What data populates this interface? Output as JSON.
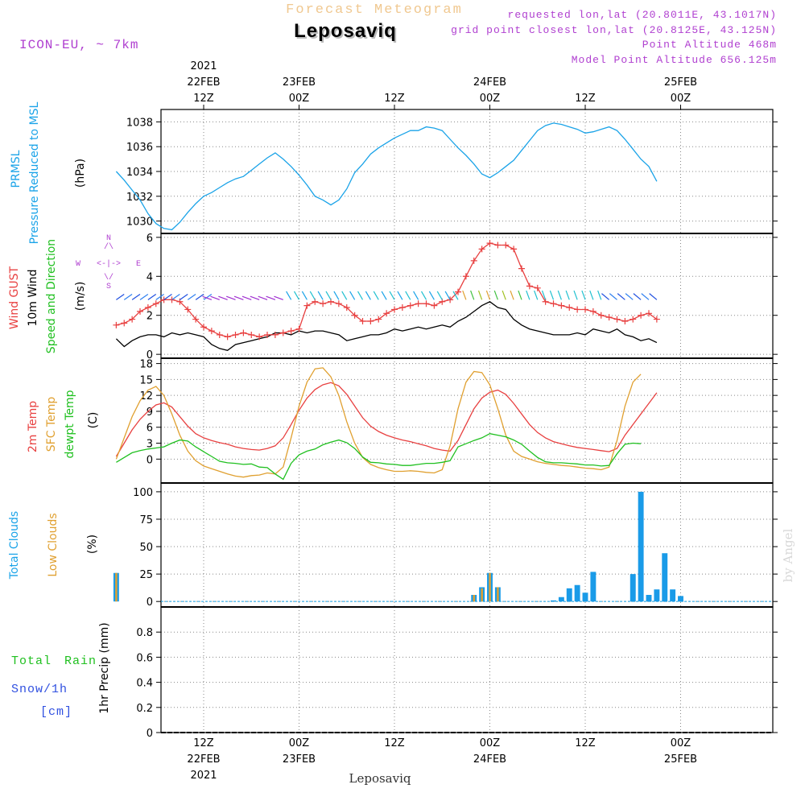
{
  "header": {
    "top_title": "Forecast Meteogram",
    "location": "Leposaviq",
    "model": "ICON-EU, ~ 7km",
    "requested": "requested lon,lat (20.8011E, 43.1017N)",
    "grid_point": "grid point closest lon,lat (20.8125E, 43.125N)",
    "point_alt": "Point Altitude 468m",
    "model_alt": "Model Point Altitude 656.125m",
    "footer_location": "Leposaviq",
    "credit": "by Angel"
  },
  "time_axis": {
    "top_labels": [
      [
        "2021",
        "22FEB",
        "12Z"
      ],
      [
        "",
        "23FEB",
        "00Z"
      ],
      [
        "",
        "",
        "12Z"
      ],
      [
        "",
        "24FEB",
        "00Z"
      ],
      [
        "",
        "",
        "12Z"
      ],
      [
        "",
        "25FEB",
        "00Z"
      ]
    ],
    "bottom_labels": [
      [
        "12Z",
        "22FEB",
        "2021"
      ],
      [
        "00Z",
        "23FEB",
        ""
      ],
      [
        "12Z",
        "",
        ""
      ],
      [
        "00Z",
        "24FEB",
        ""
      ],
      [
        "12Z",
        "",
        ""
      ],
      [
        "00Z",
        "25FEB",
        ""
      ]
    ]
  },
  "panel_labels": {
    "pressure": {
      "line1": "PRMSL",
      "line2": "Pressure Reduced to MSL",
      "unit": "(hPa)"
    },
    "wind": {
      "gust": "Wind GUST",
      "wind10": "10m Wind",
      "dir": "Speed and Direction",
      "unit": "(m/s)",
      "compass_n": "N",
      "compass_s": "S",
      "compass_w": "W",
      "compass_e": "E",
      "compass_h": "<-|->",
      "compass_vu": "/\\",
      "compass_vd": "\\/"
    },
    "temp": {
      "t2m": "2m Temp",
      "sfc": "SFC Temp",
      "dew": "dewpt Temp",
      "unit": "(C)"
    },
    "clouds": {
      "total": "Total Clouds",
      "low": "Low Clouds",
      "unit": "(%)"
    },
    "precip": {
      "rain1": "Total",
      "rain2": "Rain",
      "snow": "Snow/1h",
      "cm": "[cm]",
      "axis": "1hr Precip (mm)"
    }
  },
  "colors": {
    "prmsl": "#1aa3e8",
    "gust": "#e84040",
    "wind10": "#000000",
    "t2m": "#e84040",
    "sfc": "#e0a030",
    "dew": "#20c020",
    "total_clouds": "#1a9be8",
    "low_clouds": "#e0a030",
    "rain": "#20c020",
    "snow": "#3050e0",
    "label_purple": "#b040d0",
    "title_orange": "#f0c890"
  },
  "chart_data": [
    {
      "type": "line",
      "panel": "pressure",
      "ylabel": "(hPa)",
      "ylim": [
        1029,
        1039
      ],
      "yticks": [
        1030,
        1032,
        1034,
        1036,
        1038
      ],
      "x_start": "2021-02-22T01Z",
      "x_step_hours": 1,
      "series": [
        {
          "name": "PRMSL",
          "values": [
            1034.0,
            1033.3,
            1032.5,
            1031.7,
            1030.6,
            1029.8,
            1029.4,
            1029.3,
            1029.9,
            1030.7,
            1031.4,
            1032.0,
            1032.3,
            1032.7,
            1033.1,
            1033.4,
            1033.6,
            1034.1,
            1034.6,
            1035.1,
            1035.5,
            1035.0,
            1034.4,
            1033.7,
            1032.9,
            1032.0,
            1031.7,
            1031.3,
            1031.7,
            1032.6,
            1033.9,
            1034.6,
            1035.4,
            1035.9,
            1036.3,
            1036.7,
            1037.0,
            1037.3,
            1037.3,
            1037.6,
            1037.5,
            1037.3,
            1036.6,
            1035.9,
            1035.3,
            1034.6,
            1033.8,
            1033.5,
            1033.9,
            1034.4,
            1034.9,
            1035.7,
            1036.5,
            1037.3,
            1037.7,
            1037.9,
            1037.8,
            1037.6,
            1037.4,
            1037.1,
            1037.2,
            1037.4,
            1037.6,
            1037.3,
            1036.6,
            1035.8,
            1035.0,
            1034.4,
            1033.2
          ]
        }
      ]
    },
    {
      "type": "line",
      "panel": "wind",
      "ylabel": "(m/s)",
      "ylim": [
        -0.2,
        6.2
      ],
      "yticks": [
        0,
        2,
        4,
        6
      ],
      "x_start": "2021-02-22T01Z",
      "x_step_hours": 1,
      "series": [
        {
          "name": "Wind GUST",
          "values": [
            1.5,
            1.6,
            1.8,
            2.2,
            2.4,
            2.6,
            2.8,
            2.8,
            2.7,
            2.3,
            1.8,
            1.4,
            1.2,
            1.0,
            0.9,
            1.0,
            1.1,
            1.0,
            0.9,
            1.0,
            1.0,
            1.1,
            1.2,
            1.3,
            2.5,
            2.7,
            2.6,
            2.7,
            2.6,
            2.4,
            2.0,
            1.7,
            1.7,
            1.8,
            2.1,
            2.3,
            2.4,
            2.5,
            2.6,
            2.6,
            2.5,
            2.7,
            2.8,
            3.2,
            4.0,
            4.8,
            5.4,
            5.7,
            5.6,
            5.6,
            5.4,
            4.4,
            3.5,
            3.4,
            2.7,
            2.6,
            2.5,
            2.4,
            2.3,
            2.3,
            2.2,
            2.0,
            1.9,
            1.8,
            1.7,
            1.8,
            2.0,
            2.1,
            1.8
          ]
        },
        {
          "name": "10m Wind",
          "values": [
            0.8,
            0.4,
            0.7,
            0.9,
            1.0,
            1.0,
            0.9,
            1.1,
            1.0,
            1.1,
            1.0,
            0.9,
            0.5,
            0.3,
            0.2,
            0.5,
            0.6,
            0.7,
            0.8,
            0.9,
            1.1,
            1.1,
            1.0,
            1.2,
            1.1,
            1.2,
            1.2,
            1.1,
            1.0,
            0.7,
            0.8,
            0.9,
            1.0,
            1.0,
            1.1,
            1.3,
            1.2,
            1.3,
            1.4,
            1.3,
            1.4,
            1.5,
            1.4,
            1.7,
            1.9,
            2.2,
            2.5,
            2.7,
            2.4,
            2.3,
            1.8,
            1.5,
            1.3,
            1.2,
            1.1,
            1.0,
            1.0,
            1.0,
            1.1,
            1.0,
            1.3,
            1.2,
            1.1,
            1.3,
            1.0,
            0.9,
            0.7,
            0.8,
            0.6
          ]
        }
      ]
    },
    {
      "type": "line",
      "panel": "temperature",
      "ylabel": "(C)",
      "ylim": [
        -4.5,
        19
      ],
      "yticks": [
        0,
        3,
        6,
        9,
        12,
        15,
        18
      ],
      "x_start": "2021-02-22T01Z",
      "x_step_hours": 1,
      "series": [
        {
          "name": "2m Temp",
          "values": [
            0.5,
            3.0,
            5.5,
            7.5,
            9.0,
            10.2,
            10.6,
            9.8,
            8.0,
            6.2,
            4.8,
            4.0,
            3.5,
            3.1,
            2.8,
            2.3,
            2.0,
            1.8,
            1.7,
            2.0,
            2.5,
            4.0,
            6.5,
            9.2,
            11.5,
            13.1,
            14.0,
            14.4,
            13.8,
            12.2,
            10.0,
            7.8,
            6.2,
            5.2,
            4.5,
            4.0,
            3.6,
            3.3,
            2.9,
            2.5,
            2.0,
            1.7,
            1.5,
            3.5,
            6.5,
            9.5,
            11.5,
            12.6,
            13.0,
            12.2,
            10.5,
            8.5,
            6.5,
            5.0,
            4.0,
            3.3,
            2.9,
            2.5,
            2.2,
            2.0,
            1.8,
            1.6,
            1.4,
            2.0,
            4.5,
            6.5,
            8.5,
            10.5,
            12.5
          ]
        },
        {
          "name": "SFC Temp",
          "values": [
            0.0,
            4.0,
            8.0,
            11.0,
            13.0,
            13.7,
            12.0,
            8.5,
            4.5,
            1.5,
            -0.3,
            -1.3,
            -1.8,
            -2.3,
            -2.8,
            -3.2,
            -3.4,
            -3.1,
            -3.0,
            -2.6,
            -2.8,
            -1.5,
            4.0,
            10.0,
            14.5,
            17.0,
            17.2,
            15.5,
            12.0,
            7.0,
            3.0,
            0.3,
            -1.0,
            -1.6,
            -2.0,
            -2.3,
            -2.3,
            -2.2,
            -2.3,
            -2.5,
            -2.6,
            -2.0,
            2.5,
            9.5,
            14.5,
            16.5,
            16.3,
            14.0,
            9.5,
            4.5,
            1.5,
            0.5,
            0.0,
            -0.5,
            -0.8,
            -1.0,
            -1.2,
            -1.3,
            -1.5,
            -1.7,
            -1.8,
            -2.0,
            -1.5,
            3.5,
            10.0,
            14.5,
            16.0
          ]
        },
        {
          "name": "dewpt Temp",
          "values": [
            -0.6,
            0.3,
            1.2,
            1.6,
            1.9,
            2.1,
            2.3,
            3.0,
            3.6,
            3.4,
            2.3,
            1.4,
            0.5,
            -0.4,
            -0.7,
            -0.8,
            -1.0,
            -0.9,
            -1.5,
            -1.6,
            -2.8,
            -3.8,
            -0.8,
            0.8,
            1.5,
            1.9,
            2.7,
            3.2,
            3.6,
            3.1,
            2.0,
            0.4,
            -0.6,
            -0.7,
            -0.9,
            -1.0,
            -1.2,
            -1.2,
            -1.0,
            -0.8,
            -0.8,
            -0.6,
            -0.3,
            2.3,
            2.9,
            3.5,
            4.0,
            4.8,
            4.5,
            4.2,
            3.6,
            2.8,
            1.5,
            0.3,
            -0.5,
            -0.7,
            -0.7,
            -0.8,
            -0.9,
            -1.1,
            -1.1,
            -1.3,
            -1.2,
            1.0,
            2.8,
            3.0,
            2.9
          ]
        }
      ]
    },
    {
      "type": "bar",
      "panel": "clouds",
      "ylabel": "(%)",
      "ylim": [
        -5,
        108
      ],
      "yticks": [
        0,
        25,
        50,
        75,
        100
      ],
      "x_start": "2021-02-22T01Z",
      "x_step_hours": 1,
      "series": [
        {
          "name": "Total Clouds",
          "values": [
            26,
            0,
            0,
            0,
            0,
            0,
            0,
            0,
            0,
            0,
            0,
            0,
            0,
            0,
            0,
            0,
            0,
            0,
            0,
            0,
            0,
            0,
            0,
            0,
            0,
            0,
            0,
            0,
            0,
            0,
            0,
            0,
            0,
            0,
            0,
            0,
            0,
            0,
            0,
            0,
            0,
            0,
            0,
            0,
            0,
            6,
            13,
            26,
            13,
            0,
            0,
            0,
            0,
            0,
            0,
            1,
            4,
            12,
            15,
            8,
            27,
            0,
            0,
            0,
            0,
            25,
            100,
            6,
            11,
            44,
            11,
            5
          ]
        },
        {
          "name": "Low Clouds",
          "values": [
            26,
            0,
            0,
            0,
            0,
            0,
            0,
            0,
            0,
            0,
            0,
            0,
            0,
            0,
            0,
            0,
            0,
            0,
            0,
            0,
            0,
            0,
            0,
            0,
            0,
            0,
            0,
            0,
            0,
            0,
            0,
            0,
            0,
            0,
            0,
            0,
            0,
            0,
            0,
            0,
            0,
            0,
            0,
            0,
            0,
            6,
            12,
            26,
            13,
            0,
            0,
            0,
            0,
            0,
            0,
            0,
            0,
            0,
            0,
            0,
            0,
            0,
            0,
            0,
            0,
            0,
            0,
            0,
            0,
            0,
            0,
            0
          ]
        }
      ]
    },
    {
      "type": "bar",
      "panel": "precipitation",
      "ylabel": "1hr Precip (mm)",
      "ylim": [
        0,
        1.0
      ],
      "yticks": [
        0,
        0.2,
        0.4,
        0.6,
        0.8
      ],
      "series": [
        {
          "name": "Total Rain",
          "values": []
        },
        {
          "name": "Snow/1h",
          "values": []
        }
      ]
    }
  ]
}
